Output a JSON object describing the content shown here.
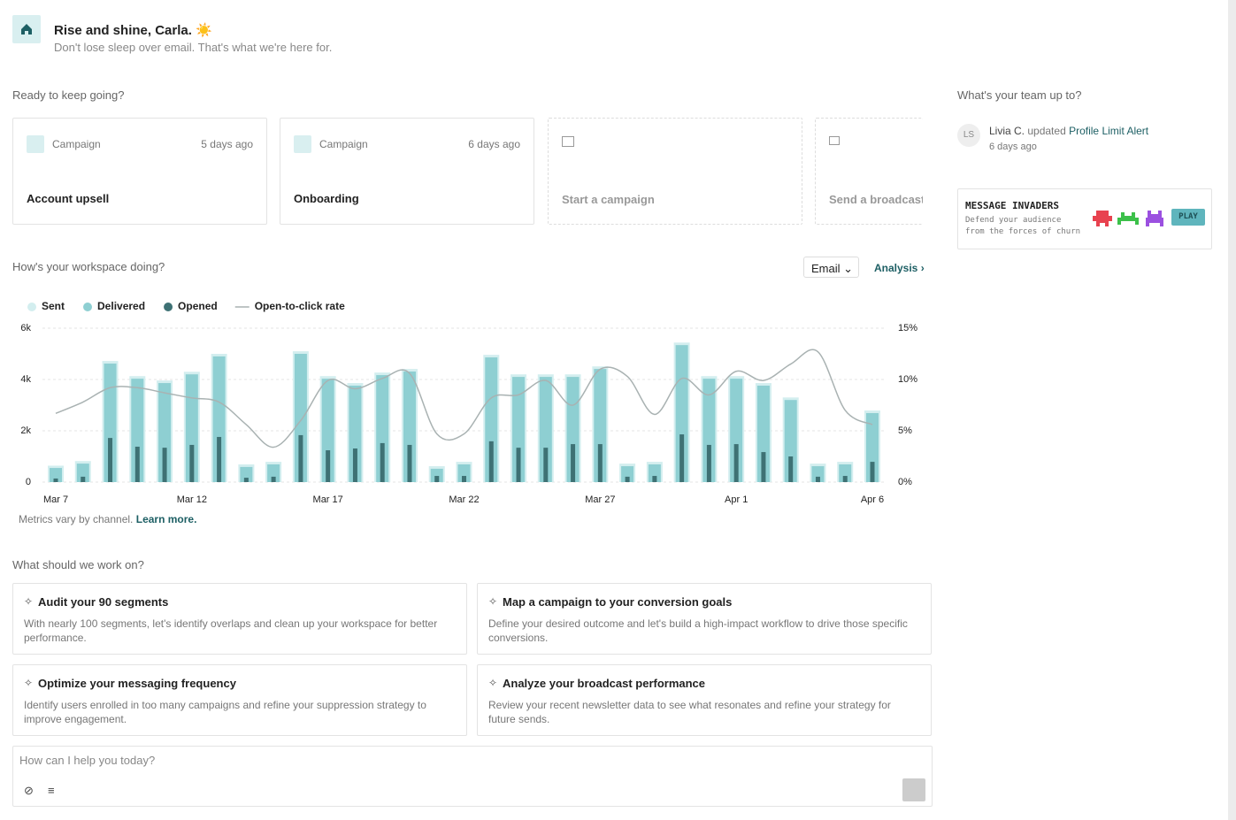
{
  "header": {
    "title": "Rise and shine, Carla. ☀️",
    "subtitle": "Don't lose sleep over email. That's what we're here for."
  },
  "recent": {
    "heading": "Ready to keep going?",
    "items": [
      {
        "type": "Campaign",
        "time": "5 days ago",
        "name": "Account upsell"
      },
      {
        "type": "Campaign",
        "time": "6 days ago",
        "name": "Onboarding"
      }
    ],
    "actions": [
      "Start a campaign",
      "Send a broadcast"
    ]
  },
  "workspace": {
    "heading": "How's your workspace doing?",
    "channel": "Email",
    "analysis": "Analysis",
    "note": "Metrics vary by channel.",
    "note_link": "Learn more."
  },
  "chart_data": {
    "type": "bar",
    "categories": [
      "Mar 7",
      null,
      null,
      null,
      null,
      "Mar 12",
      null,
      null,
      null,
      null,
      "Mar 17",
      null,
      null,
      null,
      null,
      "Mar 22",
      null,
      null,
      null,
      null,
      "Mar 27",
      null,
      null,
      null,
      null,
      "Apr 1",
      null,
      null,
      null,
      null,
      "Apr 6"
    ],
    "series": [
      {
        "name": "Sent",
        "color": "#d3eeef",
        "values": [
          640,
          820,
          4720,
          4130,
          3960,
          4300,
          5000,
          690,
          790,
          5100,
          4130,
          3860,
          4270,
          4410,
          620,
          790,
          4960,
          4200,
          4200,
          4200,
          4510,
          720,
          790,
          5440,
          4130,
          4130,
          3860,
          3300,
          720,
          790,
          2790
        ]
      },
      {
        "name": "Delivered",
        "color": "#8ecfd2",
        "values": [
          550,
          720,
          4620,
          4030,
          3860,
          4200,
          4900,
          590,
          690,
          5000,
          4030,
          3760,
          4170,
          4310,
          520,
          690,
          4860,
          4100,
          4100,
          4100,
          4410,
          620,
          690,
          5340,
          4030,
          4030,
          3760,
          3200,
          620,
          690,
          2690
        ]
      },
      {
        "name": "Opened",
        "color": "#3e7174",
        "values": [
          140,
          210,
          1720,
          1380,
          1340,
          1450,
          1760,
          170,
          210,
          1830,
          1240,
          1310,
          1520,
          1450,
          240,
          240,
          1590,
          1340,
          1340,
          1480,
          1480,
          210,
          240,
          1860,
          1450,
          1480,
          1170,
          1000,
          210,
          240,
          790
        ]
      },
      {
        "name": "Open-to-click rate",
        "color": "#a9b2b2",
        "type": "line",
        "axis": "y2",
        "values": [
          6.7,
          7.8,
          9.2,
          9.2,
          8.7,
          8.2,
          7.8,
          5.6,
          3.4,
          6.0,
          9.9,
          9.1,
          10.1,
          10.6,
          4.7,
          4.7,
          8.2,
          8.5,
          9.9,
          7.5,
          11.0,
          10.3,
          6.6,
          10.1,
          8.5,
          10.8,
          9.9,
          11.5,
          12.7,
          7.0,
          5.6
        ]
      }
    ],
    "ylim": [
      0,
      6000
    ],
    "yticks": [
      0,
      {
        "value": 2000,
        "label": "2k"
      },
      {
        "value": 4000,
        "label": "4k"
      },
      {
        "value": 6000,
        "label": "6k"
      }
    ],
    "y2lim": [
      0,
      15
    ],
    "y2ticks": [
      {
        "value": 0,
        "label": "0%"
      },
      {
        "value": 5,
        "label": "5%"
      },
      {
        "value": 10,
        "label": "10%"
      },
      {
        "value": 15,
        "label": "15%"
      }
    ],
    "grid": true,
    "legend": "top-left"
  },
  "suggestions": {
    "heading": "What should we work on?",
    "items": [
      {
        "title": "Audit your 90 segments",
        "text": "With nearly 100 segments, let's identify overlaps and clean up your workspace for better performance."
      },
      {
        "title": "Map a campaign to your conversion goals",
        "text": "Define your desired outcome and let's build a high-impact workflow to drive those specific conversions."
      },
      {
        "title": "Optimize your messaging frequency",
        "text": "Identify users enrolled in too many campaigns and refine your suppression strategy to improve engagement."
      },
      {
        "title": "Analyze your broadcast performance",
        "text": "Review your recent newsletter data to see what resonates and refine your strategy for future sends."
      }
    ]
  },
  "prompt": {
    "placeholder": "How can I help you today?"
  },
  "team": {
    "heading": "What's your team up to?",
    "avatar": "LS",
    "user": "Livia C.",
    "verb": "updated",
    "target": "Profile Limit Alert",
    "time": "6 days ago"
  },
  "game": {
    "title": "MESSAGE INVADERS",
    "line1": "Defend your audience",
    "line2": "from the forces of churn",
    "button": "PLAY"
  }
}
